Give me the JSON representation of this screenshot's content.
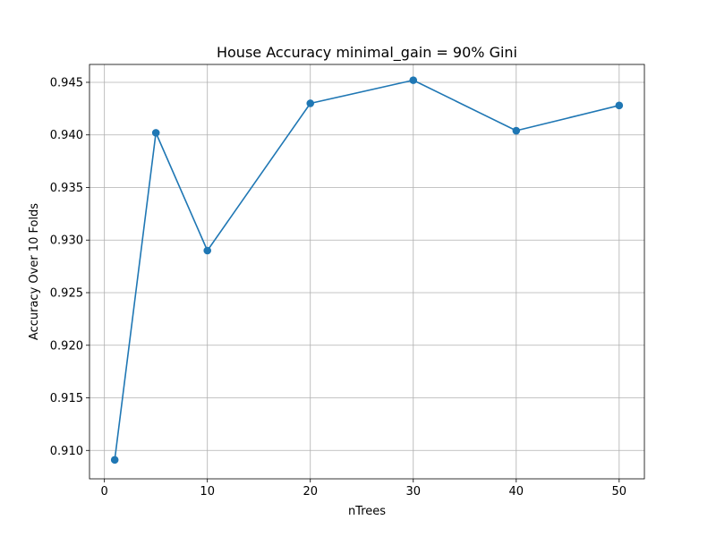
{
  "chart_data": {
    "type": "line",
    "title": "House Accuracy minimal_gain = 90% Gini",
    "xlabel": "nTrees",
    "ylabel": "Accuracy Over 10 Folds",
    "x": [
      1,
      5,
      10,
      20,
      30,
      40,
      50
    ],
    "series": [
      {
        "values": [
          0.9091,
          0.9402,
          0.929,
          0.943,
          0.9452,
          0.9404,
          0.9428
        ],
        "color": "#1f77b4",
        "marker": "circle"
      }
    ],
    "xlim": [
      -1.45,
      52.45
    ],
    "ylim": [
      0.9073,
      0.9467
    ],
    "xticks": [
      0,
      10,
      20,
      30,
      40,
      50
    ],
    "xtick_labels": [
      "0",
      "10",
      "20",
      "30",
      "40",
      "50"
    ],
    "yticks": [
      0.91,
      0.915,
      0.92,
      0.925,
      0.93,
      0.935,
      0.94,
      0.945
    ],
    "ytick_labels": [
      "0.910",
      "0.915",
      "0.920",
      "0.925",
      "0.930",
      "0.935",
      "0.940",
      "0.945"
    ],
    "grid": true
  }
}
